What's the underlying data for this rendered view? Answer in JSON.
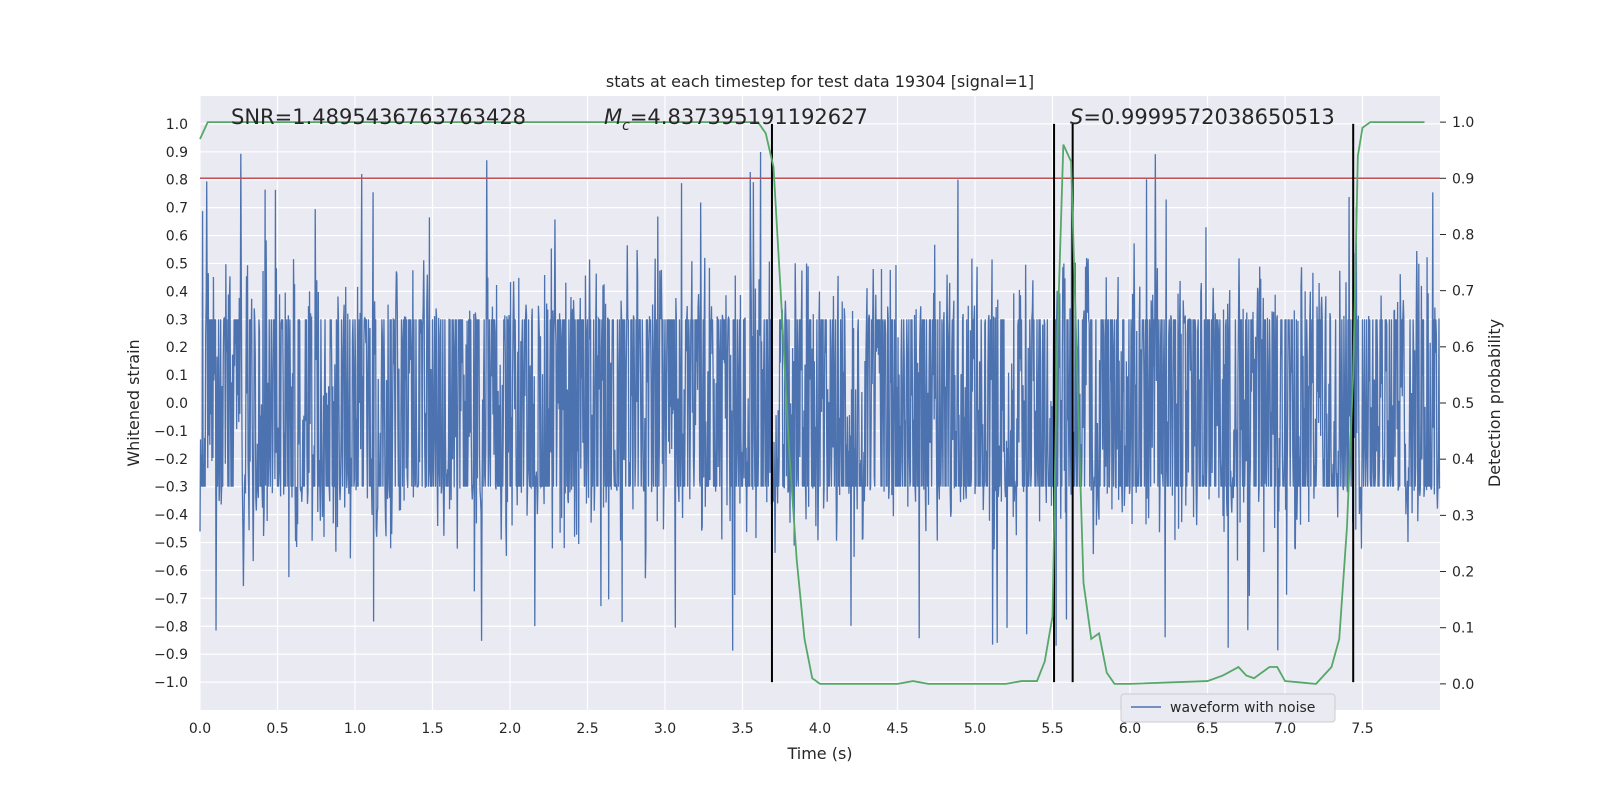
{
  "chart_data": {
    "type": "line",
    "title": "stats at each timestep for test data 19304 [signal=1]",
    "xlabel": "Time (s)",
    "ylabel": "Whitened strain",
    "y2label": "Detection probability",
    "xlim": [
      0.0,
      8.0
    ],
    "ylim": [
      -1.1,
      1.1
    ],
    "y2lim": [
      -0.0465,
      1.0465
    ],
    "grid": true,
    "x_ticks": [
      "0.0",
      "0.5",
      "1.0",
      "1.5",
      "2.0",
      "2.5",
      "3.0",
      "3.5",
      "4.0",
      "4.5",
      "5.0",
      "5.5",
      "6.0",
      "6.5",
      "7.0",
      "7.5"
    ],
    "y_ticks": [
      "1.0",
      "0.9",
      "0.8",
      "0.7",
      "0.6",
      "0.5",
      "0.4",
      "0.3",
      "0.2",
      "0.1",
      "0.0",
      "−0.1",
      "−0.2",
      "−0.3",
      "−0.4",
      "−0.5",
      "−0.6",
      "−0.7",
      "−0.8",
      "−0.9",
      "−1.0"
    ],
    "y2_ticks": [
      "0.0",
      "0.1",
      "0.2",
      "0.3",
      "0.4",
      "0.5",
      "0.6",
      "0.7",
      "0.8",
      "0.9",
      "1.0"
    ],
    "annotations": {
      "snr": "SNR=1.4895436763763428",
      "mc_symbol": "M",
      "mc_sub": "c",
      "mc_value": "=4.837395191192627",
      "s_symbol": "S",
      "s_value": "=0.9999572038650513"
    },
    "legend": {
      "label": "waveform with noise",
      "position": "lower-right"
    },
    "threshold": {
      "value": 0.9,
      "color": "#c44e52"
    },
    "vertical_lines": [
      3.69,
      5.51,
      5.63,
      7.44
    ],
    "colors": {
      "waveform": "#4c72b0",
      "probability": "#55a868",
      "threshold": "#c44e52",
      "vlines": "#000000",
      "background": "#eaeaf2"
    },
    "series": [
      {
        "name": "waveform with noise",
        "description": "dense whitened strain noise, envelope roughly within ±0.55 with spikes up to ±0.9"
      },
      {
        "name": "detection probability",
        "axis": "right",
        "x": [
          0.0,
          0.05,
          0.1,
          0.5,
          1.0,
          1.5,
          2.0,
          2.5,
          3.0,
          3.5,
          3.6,
          3.65,
          3.7,
          3.75,
          3.8,
          3.85,
          3.9,
          3.95,
          4.0,
          4.2,
          4.5,
          4.6,
          4.7,
          4.9,
          5.0,
          5.2,
          5.3,
          5.4,
          5.45,
          5.5,
          5.53,
          5.57,
          5.62,
          5.67,
          5.7,
          5.75,
          5.8,
          5.85,
          5.9,
          6.0,
          6.5,
          6.6,
          6.7,
          6.75,
          6.8,
          6.85,
          6.9,
          6.95,
          7.0,
          7.2,
          7.3,
          7.35,
          7.4,
          7.44,
          7.47,
          7.5,
          7.55,
          7.6,
          7.9
        ],
        "y": [
          0.97,
          1.0,
          1.0,
          1.0,
          1.0,
          1.0,
          1.0,
          1.0,
          1.0,
          1.0,
          1.0,
          0.98,
          0.92,
          0.68,
          0.42,
          0.22,
          0.08,
          0.01,
          0.0,
          0.0,
          0.0,
          0.005,
          0.0,
          0.0,
          0.0,
          0.0,
          0.005,
          0.005,
          0.04,
          0.12,
          0.6,
          0.96,
          0.93,
          0.45,
          0.18,
          0.08,
          0.09,
          0.02,
          0.0,
          0.0,
          0.005,
          0.015,
          0.03,
          0.015,
          0.01,
          0.02,
          0.03,
          0.03,
          0.005,
          0.0,
          0.03,
          0.08,
          0.28,
          0.55,
          0.94,
          0.99,
          1.0,
          1.0,
          1.0
        ]
      }
    ]
  }
}
